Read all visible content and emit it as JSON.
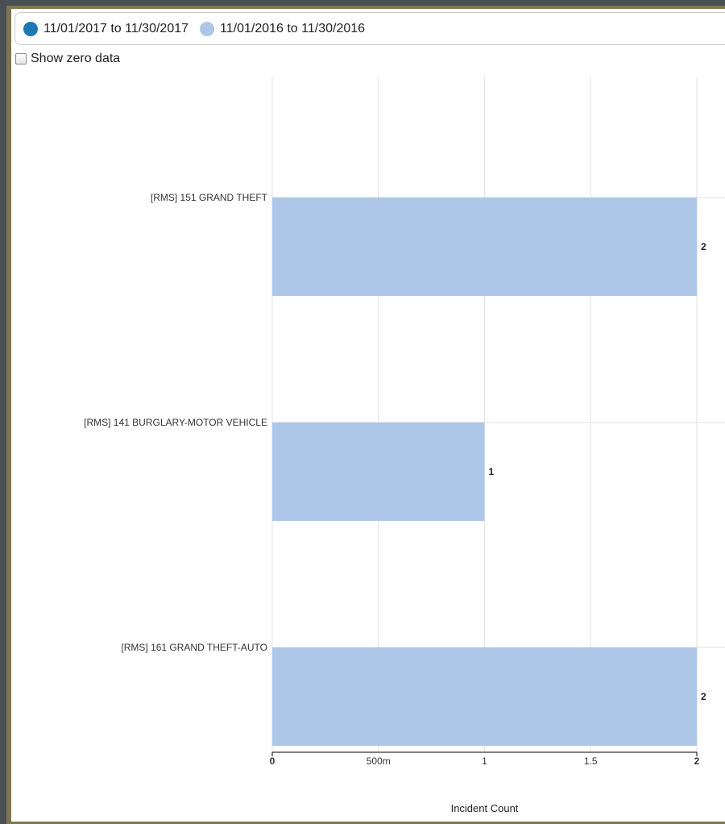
{
  "legend": {
    "items": [
      {
        "label": "11/01/2017 to 11/30/2017",
        "color": "#1f77b4"
      },
      {
        "label": "11/01/2016 to 11/30/2016",
        "color": "#aec7e8"
      }
    ]
  },
  "options": {
    "show_zero_label": "Show zero data",
    "show_zero_checked": false
  },
  "chart_data": {
    "type": "bar",
    "orientation": "horizontal",
    "categories": [
      "[RMS] 151 GRAND THEFT",
      "[RMS] 141 BURGLARY-MOTOR VEHICLE",
      "[RMS] 161 GRAND THEFT-AUTO"
    ],
    "series": [
      {
        "name": "11/01/2017 to 11/30/2017",
        "values": [
          0,
          0,
          0
        ],
        "color": "#1f77b4"
      },
      {
        "name": "11/01/2016 to 11/30/2016",
        "values": [
          2,
          1,
          2
        ],
        "color": "#aec7e8"
      }
    ],
    "value_labels": [
      "2",
      "1",
      "2"
    ],
    "xlabel": "Incident Count",
    "xlim": [
      0,
      2
    ],
    "xticks": [
      {
        "value": 0,
        "label": "0"
      },
      {
        "value": 0.5,
        "label": "500m"
      },
      {
        "value": 1,
        "label": "1"
      },
      {
        "value": 1.5,
        "label": "1.5"
      },
      {
        "value": 2,
        "label": "2"
      }
    ],
    "grid": true
  }
}
